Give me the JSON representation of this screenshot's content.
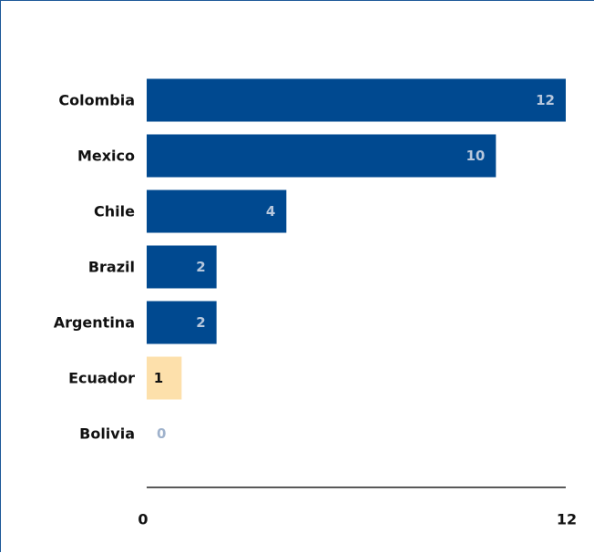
{
  "chart_data": {
    "type": "bar",
    "orientation": "horizontal",
    "categories": [
      "Colombia",
      "Mexico",
      "Chile",
      "Brazil",
      "Argentina",
      "Ecuador",
      "Bolivia"
    ],
    "values": [
      12,
      10,
      4,
      2,
      2,
      1,
      0
    ],
    "xlim": [
      0,
      12
    ],
    "x_ticks": [
      "0",
      "12"
    ],
    "grid": false,
    "legend": "none",
    "colors": {
      "default_bar": "#004990",
      "highlight_bar": "#fde0ab",
      "label_on_dark": "#b7c7dc",
      "label_on_light": "#111111",
      "zero_label": "#9fb2cc",
      "axis": "#222222",
      "frame": "#1f5a99"
    },
    "highlight_category": "Ecuador"
  }
}
